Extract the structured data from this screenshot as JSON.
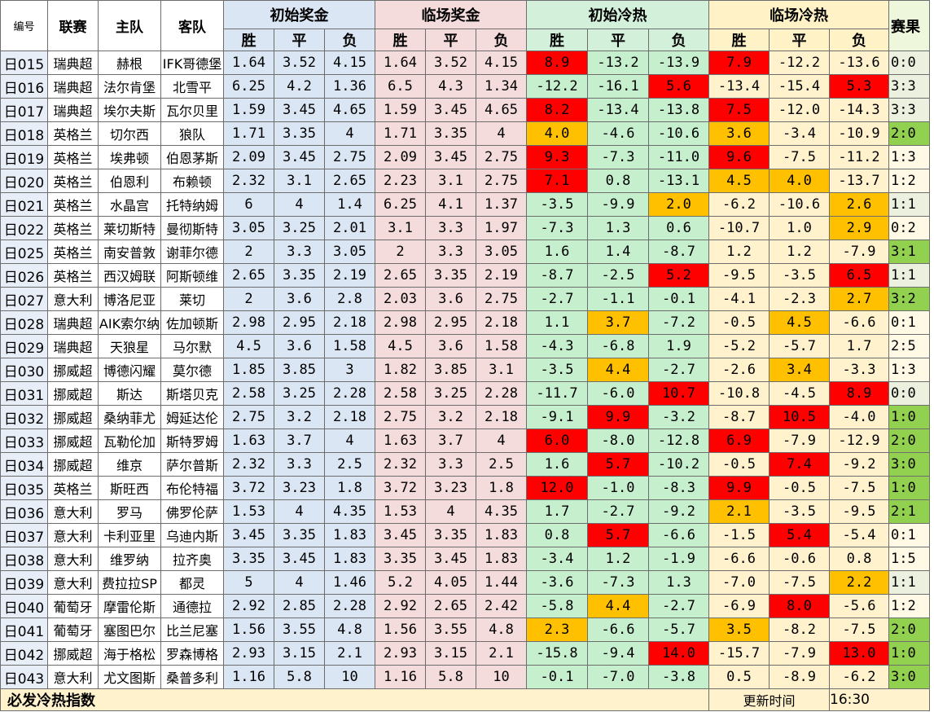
{
  "headers": {
    "id": "编号",
    "league": "联赛",
    "home": "主队",
    "away": "客队",
    "initial_prize": "初始奖金",
    "live_prize": "临场奖金",
    "initial_heat": "初始冷热",
    "live_heat": "临场冷热",
    "result": "赛果",
    "win": "胜",
    "draw": "平",
    "loss": "负"
  },
  "colors": {
    "hot_red": "#ff0000",
    "warm_orange": "#ffc000",
    "cool_green": "#c6efce",
    "cool_yellow": "#fff2cc",
    "result_green": "#92d050",
    "result_pale": "#ebf1de"
  },
  "rows": [
    {
      "id": "日015",
      "league": "瑞典超",
      "home": "赫根",
      "away": "IFK哥德堡",
      "p1": "1.64",
      "p2": "3.52",
      "p3": "4.15",
      "l1": "1.64",
      "l2": "3.52",
      "l3": "4.15",
      "i1": "8.9",
      "i2": "-13.2",
      "i3": "-13.9",
      "c1": "7.9",
      "c2": "-12.2",
      "c3": "-13.6",
      "res": "0:0"
    },
    {
      "id": "日016",
      "league": "瑞典超",
      "home": "法尔肯堡",
      "away": "北雪平",
      "p1": "6.25",
      "p2": "4.2",
      "p3": "1.36",
      "l1": "6.5",
      "l2": "4.3",
      "l3": "1.34",
      "i1": "-12.2",
      "i2": "-16.1",
      "i3": "5.6",
      "c1": "-13.4",
      "c2": "-15.4",
      "c3": "5.3",
      "res": "3:3"
    },
    {
      "id": "日017",
      "league": "瑞典超",
      "home": "埃尔夫斯",
      "away": "瓦尔贝里",
      "p1": "1.59",
      "p2": "3.45",
      "p3": "4.65",
      "l1": "1.59",
      "l2": "3.45",
      "l3": "4.65",
      "i1": "8.2",
      "i2": "-13.4",
      "i3": "-13.8",
      "c1": "7.5",
      "c2": "-12.0",
      "c3": "-14.3",
      "res": "3:3"
    },
    {
      "id": "日018",
      "league": "英格兰",
      "home": "切尔西",
      "away": "狼队",
      "p1": "1.71",
      "p2": "3.35",
      "p3": "4",
      "l1": "1.71",
      "l2": "3.35",
      "l3": "4",
      "i1": "4.0",
      "i2": "-4.6",
      "i3": "-10.6",
      "c1": "3.6",
      "c2": "-3.4",
      "c3": "-10.9",
      "res": "2:0"
    },
    {
      "id": "日019",
      "league": "英格兰",
      "home": "埃弗顿",
      "away": "伯恩茅斯",
      "p1": "2.09",
      "p2": "3.45",
      "p3": "2.75",
      "l1": "2.09",
      "l2": "3.45",
      "l3": "2.75",
      "i1": "9.3",
      "i2": "-7.3",
      "i3": "-11.0",
      "c1": "9.6",
      "c2": "-7.5",
      "c3": "-11.2",
      "res": "1:3"
    },
    {
      "id": "日020",
      "league": "英格兰",
      "home": "伯恩利",
      "away": "布赖顿",
      "p1": "2.32",
      "p2": "3.1",
      "p3": "2.65",
      "l1": "2.23",
      "l2": "3.1",
      "l3": "2.75",
      "i1": "7.1",
      "i2": "0.8",
      "i3": "-13.1",
      "c1": "4.5",
      "c2": "4.0",
      "c3": "-13.7",
      "res": "1:2"
    },
    {
      "id": "日021",
      "league": "英格兰",
      "home": "水晶宫",
      "away": "托特纳姆",
      "p1": "6",
      "p2": "4",
      "p3": "1.4",
      "l1": "6.25",
      "l2": "4.1",
      "l3": "1.37",
      "i1": "-3.5",
      "i2": "-9.9",
      "i3": "2.0",
      "c1": "-6.2",
      "c2": "-10.6",
      "c3": "2.6",
      "res": "1:1"
    },
    {
      "id": "日022",
      "league": "英格兰",
      "home": "莱切斯特",
      "away": "曼彻斯特",
      "p1": "3.05",
      "p2": "3.25",
      "p3": "2.01",
      "l1": "3.1",
      "l2": "3.3",
      "l3": "1.97",
      "i1": "-7.3",
      "i2": "1.3",
      "i3": "0.6",
      "c1": "-10.7",
      "c2": "1.0",
      "c3": "2.9",
      "res": "0:2"
    },
    {
      "id": "日025",
      "league": "英格兰",
      "home": "南安普敦",
      "away": "谢菲尔德",
      "p1": "2",
      "p2": "3.3",
      "p3": "3.05",
      "l1": "2",
      "l2": "3.3",
      "l3": "3.05",
      "i1": "1.6",
      "i2": "1.4",
      "i3": "-8.7",
      "c1": "1.2",
      "c2": "1.2",
      "c3": "-7.9",
      "res": "3:1"
    },
    {
      "id": "日026",
      "league": "英格兰",
      "home": "西汉姆联",
      "away": "阿斯顿维",
      "p1": "2.65",
      "p2": "3.35",
      "p3": "2.19",
      "l1": "2.65",
      "l2": "3.35",
      "l3": "2.19",
      "i1": "-8.7",
      "i2": "-2.5",
      "i3": "5.2",
      "c1": "-9.5",
      "c2": "-3.5",
      "c3": "6.5",
      "res": "1:1"
    },
    {
      "id": "日027",
      "league": "意大利",
      "home": "博洛尼亚",
      "away": "莱切",
      "p1": "2",
      "p2": "3.6",
      "p3": "2.8",
      "l1": "2.03",
      "l2": "3.6",
      "l3": "2.75",
      "i1": "-2.7",
      "i2": "-1.1",
      "i3": "-0.1",
      "c1": "-4.1",
      "c2": "-2.3",
      "c3": "2.7",
      "res": "3:2"
    },
    {
      "id": "日028",
      "league": "瑞典超",
      "home": "AIK索尔纳",
      "away": "佐加顿斯",
      "p1": "2.98",
      "p2": "2.95",
      "p3": "2.18",
      "l1": "2.98",
      "l2": "2.95",
      "l3": "2.18",
      "i1": "1.1",
      "i2": "3.7",
      "i3": "-7.2",
      "c1": "-0.5",
      "c2": "4.5",
      "c3": "-6.6",
      "res": "0:1"
    },
    {
      "id": "日029",
      "league": "瑞典超",
      "home": "天狼星",
      "away": "马尔默",
      "p1": "4.5",
      "p2": "3.6",
      "p3": "1.58",
      "l1": "4.5",
      "l2": "3.6",
      "l3": "1.58",
      "i1": "-4.3",
      "i2": "-6.8",
      "i3": "1.9",
      "c1": "-5.2",
      "c2": "-5.7",
      "c3": "1.7",
      "res": "2:5"
    },
    {
      "id": "日030",
      "league": "挪威超",
      "home": "博德闪耀",
      "away": "莫尔德",
      "p1": "1.85",
      "p2": "3.85",
      "p3": "3",
      "l1": "1.82",
      "l2": "3.85",
      "l3": "3.1",
      "i1": "-3.5",
      "i2": "4.4",
      "i3": "-2.7",
      "c1": "-2.6",
      "c2": "3.4",
      "c3": "-3.3",
      "res": "1:3"
    },
    {
      "id": "日031",
      "league": "挪威超",
      "home": "斯达",
      "away": "斯塔贝克",
      "p1": "2.58",
      "p2": "3.25",
      "p3": "2.28",
      "l1": "2.58",
      "l2": "3.25",
      "l3": "2.28",
      "i1": "-11.7",
      "i2": "-6.0",
      "i3": "10.7",
      "c1": "-10.8",
      "c2": "-4.5",
      "c3": "8.9",
      "res": "0:0"
    },
    {
      "id": "日032",
      "league": "挪威超",
      "home": "桑纳菲尤",
      "away": "姆延达伦",
      "p1": "2.75",
      "p2": "3.2",
      "p3": "2.18",
      "l1": "2.75",
      "l2": "3.2",
      "l3": "2.18",
      "i1": "-9.1",
      "i2": "9.9",
      "i3": "-3.2",
      "c1": "-8.7",
      "c2": "10.5",
      "c3": "-4.0",
      "res": "1:0"
    },
    {
      "id": "日033",
      "league": "挪威超",
      "home": "瓦勒伦加",
      "away": "斯特罗姆",
      "p1": "1.63",
      "p2": "3.7",
      "p3": "4",
      "l1": "1.63",
      "l2": "3.7",
      "l3": "4",
      "i1": "6.0",
      "i2": "-8.0",
      "i3": "-12.8",
      "c1": "6.9",
      "c2": "-7.9",
      "c3": "-12.9",
      "res": "2:0"
    },
    {
      "id": "日034",
      "league": "挪威超",
      "home": "维京",
      "away": "萨尔普斯",
      "p1": "2.32",
      "p2": "3.3",
      "p3": "2.5",
      "l1": "2.32",
      "l2": "3.3",
      "l3": "2.5",
      "i1": "1.6",
      "i2": "5.7",
      "i3": "-10.2",
      "c1": "-0.5",
      "c2": "7.4",
      "c3": "-9.2",
      "res": "3:0"
    },
    {
      "id": "日035",
      "league": "英格兰",
      "home": "斯旺西",
      "away": "布伦特福",
      "p1": "3.72",
      "p2": "3.23",
      "p3": "1.8",
      "l1": "3.72",
      "l2": "3.23",
      "l3": "1.8",
      "i1": "12.0",
      "i2": "-1.0",
      "i3": "-8.3",
      "c1": "9.9",
      "c2": "-0.5",
      "c3": "-7.5",
      "res": "1:0"
    },
    {
      "id": "日036",
      "league": "意大利",
      "home": "罗马",
      "away": "佛罗伦萨",
      "p1": "1.53",
      "p2": "4",
      "p3": "4.35",
      "l1": "1.53",
      "l2": "4",
      "l3": "4.35",
      "i1": "1.7",
      "i2": "-2.7",
      "i3": "-9.2",
      "c1": "2.1",
      "c2": "-3.5",
      "c3": "-9.5",
      "res": "2:1"
    },
    {
      "id": "日037",
      "league": "意大利",
      "home": "卡利亚里",
      "away": "乌迪内斯",
      "p1": "3.45",
      "p2": "3.35",
      "p3": "1.83",
      "l1": "3.45",
      "l2": "3.35",
      "l3": "1.83",
      "i1": "0.8",
      "i2": "5.7",
      "i3": "-6.6",
      "c1": "-1.5",
      "c2": "5.4",
      "c3": "-5.4",
      "res": "0:1"
    },
    {
      "id": "日038",
      "league": "意大利",
      "home": "维罗纳",
      "away": "拉齐奥",
      "p1": "3.35",
      "p2": "3.45",
      "p3": "1.83",
      "l1": "3.35",
      "l2": "3.45",
      "l3": "1.83",
      "i1": "-3.4",
      "i2": "1.2",
      "i3": "-1.9",
      "c1": "-6.6",
      "c2": "-0.6",
      "c3": "0.8",
      "res": "1:5"
    },
    {
      "id": "日039",
      "league": "意大利",
      "home": "费拉拉SP",
      "away": "都灵",
      "p1": "5",
      "p2": "4",
      "p3": "1.46",
      "l1": "5.2",
      "l2": "4.05",
      "l3": "1.44",
      "i1": "-3.6",
      "i2": "-7.3",
      "i3": "1.3",
      "c1": "-7.0",
      "c2": "-7.5",
      "c3": "2.2",
      "res": "1:1"
    },
    {
      "id": "日040",
      "league": "葡萄牙",
      "home": "摩雷伦斯",
      "away": "通德拉",
      "p1": "2.92",
      "p2": "2.85",
      "p3": "2.28",
      "l1": "2.92",
      "l2": "2.65",
      "l3": "2.42",
      "i1": "-5.8",
      "i2": "4.4",
      "i3": "-2.7",
      "c1": "-6.9",
      "c2": "8.0",
      "c3": "-5.6",
      "res": "1:2"
    },
    {
      "id": "日041",
      "league": "葡萄牙",
      "home": "塞图巴尔",
      "away": "比兰尼塞",
      "p1": "1.56",
      "p2": "3.55",
      "p3": "4.8",
      "l1": "1.56",
      "l2": "3.55",
      "l3": "4.8",
      "i1": "2.3",
      "i2": "-6.6",
      "i3": "-5.7",
      "c1": "3.5",
      "c2": "-8.2",
      "c3": "-7.5",
      "res": "2:0"
    },
    {
      "id": "日042",
      "league": "挪威超",
      "home": "海于格松",
      "away": "罗森博格",
      "p1": "2.93",
      "p2": "3.15",
      "p3": "2.1",
      "l1": "2.93",
      "l2": "3.15",
      "l3": "2.1",
      "i1": "-15.8",
      "i2": "-9.4",
      "i3": "14.0",
      "c1": "-15.7",
      "c2": "-7.9",
      "c3": "13.0",
      "res": "1:0"
    },
    {
      "id": "日043",
      "league": "意大利",
      "home": "尤文图斯",
      "away": "桑普多利",
      "p1": "1.16",
      "p2": "5.8",
      "p3": "10",
      "l1": "1.16",
      "l2": "5.8",
      "l3": "10",
      "i1": "-0.1",
      "i2": "-7.0",
      "i3": "-3.8",
      "c1": "0.5",
      "c2": "-8.9",
      "c3": "-6.2",
      "res": "3:0"
    }
  ],
  "footer": {
    "title": "必发冷热指数",
    "update_label": "更新时间",
    "update_time": "16:30"
  }
}
